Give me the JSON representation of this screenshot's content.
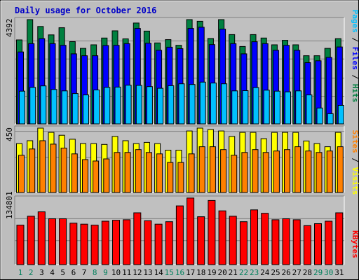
{
  "chart_data": [
    {
      "type": "bar",
      "title": "Daily usage for October 2016",
      "categories": [
        "1",
        "2",
        "3",
        "4",
        "5",
        "6",
        "7",
        "8",
        "9",
        "10",
        "11",
        "12",
        "13",
        "14",
        "15",
        "16",
        "17",
        "18",
        "19",
        "20",
        "21",
        "22",
        "23",
        "24",
        "25",
        "26",
        "27",
        "28",
        "29",
        "30",
        "31"
      ],
      "ymax_label": "4392",
      "ylim": [
        0,
        4392
      ],
      "label_parts": [
        "Pages",
        "Files",
        "Hits"
      ],
      "label_separator": " / ",
      "series": [
        {
          "name": "Hits",
          "color": "#008040",
          "values": [
            3536,
            4392,
            4104,
            3750,
            4050,
            3464,
            3180,
            3330,
            3616,
            3920,
            3580,
            4248,
            3910,
            3410,
            3550,
            3310,
            4392,
            4320,
            3596,
            4392,
            3760,
            3260,
            3760,
            3616,
            3330,
            3520,
            3330,
            2870,
            2870,
            3180,
            3590
          ]
        },
        {
          "name": "Files",
          "color": "#0000ff",
          "values": [
            3030,
            3380,
            3590,
            3380,
            3310,
            2950,
            2870,
            2870,
            3300,
            3310,
            3380,
            4020,
            3400,
            3100,
            3230,
            3170,
            4020,
            4070,
            3340,
            3990,
            3380,
            2950,
            3460,
            3380,
            3100,
            3310,
            3100,
            2580,
            2660,
            2800,
            3240
          ]
        },
        {
          "name": "Pages",
          "color": "#00c0ff",
          "values": [
            1380,
            1540,
            1600,
            1450,
            1390,
            1280,
            1220,
            1430,
            1540,
            1550,
            1630,
            1620,
            1570,
            1500,
            1610,
            1690,
            1660,
            1760,
            1720,
            1690,
            1390,
            1400,
            1530,
            1420,
            1380,
            1350,
            1390,
            1220,
            670,
            430,
            780
          ]
        }
      ]
    },
    {
      "type": "bar",
      "ymax_label": "450",
      "ylim": [
        0,
        450
      ],
      "label_parts": [
        "Sites",
        "Visits"
      ],
      "label_separator": " / ",
      "series": [
        {
          "name": "Visits",
          "color": "#ffff00",
          "values": [
            342,
            362,
            450,
            420,
            400,
            372,
            342,
            342,
            336,
            392,
            362,
            342,
            350,
            342,
            296,
            296,
            430,
            450,
            440,
            430,
            392,
            420,
            420,
            376,
            420,
            420,
            420,
            360,
            342,
            320,
            420
          ]
        },
        {
          "name": "Sites",
          "color": "#ff8000",
          "values": [
            260,
            304,
            362,
            338,
            310,
            270,
            230,
            220,
            235,
            280,
            280,
            300,
            280,
            270,
            210,
            210,
            270,
            320,
            320,
            300,
            260,
            280,
            300,
            280,
            290,
            300,
            320,
            290,
            280,
            290,
            320
          ]
        }
      ]
    },
    {
      "type": "bar",
      "ymax_label": "134801",
      "ylim": [
        0,
        134801
      ],
      "label_parts": [
        "KBytes"
      ],
      "label_separator": "",
      "series": [
        {
          "name": "KBytes",
          "color": "#ff0000",
          "values": [
            80000,
            98000,
            107000,
            93000,
            93000,
            84000,
            82000,
            80000,
            88000,
            90000,
            91000,
            105000,
            89000,
            82000,
            87000,
            119000,
            135000,
            97000,
            130000,
            109000,
            98000,
            87000,
            111000,
            104000,
            91000,
            93000,
            91000,
            79000,
            83000,
            88000,
            105000
          ]
        }
      ]
    }
  ],
  "x_tick_colors": {
    "weekday": "#000000",
    "weekend": "#00805c"
  },
  "weekend_days": [
    "1",
    "2",
    "8",
    "9",
    "15",
    "16",
    "22",
    "23",
    "29",
    "30"
  ]
}
